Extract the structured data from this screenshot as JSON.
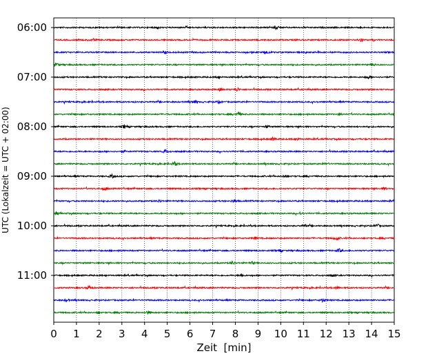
{
  "chart_data": {
    "type": "line",
    "title": "",
    "xlabel": "Zeit  [min]",
    "ylabel": "UTC (Lokalzeit = UTC + 02:00)",
    "xlim": [
      0,
      15
    ],
    "x_ticks": [
      0,
      1,
      2,
      3,
      4,
      5,
      6,
      7,
      8,
      9,
      10,
      11,
      12,
      13,
      14,
      15
    ],
    "y_tick_labels": [
      "06:00",
      "07:00",
      "08:00",
      "09:00",
      "10:00",
      "11:00"
    ],
    "grid": "vertical dotted",
    "trace_colors": [
      "#000000",
      "#ff0000",
      "#0000ff",
      "#008000"
    ],
    "series": [
      {
        "start": "06:00"
      },
      {
        "start": "06:15"
      },
      {
        "start": "06:30"
      },
      {
        "start": "06:45"
      },
      {
        "start": "07:00"
      },
      {
        "start": "07:15"
      },
      {
        "start": "07:30"
      },
      {
        "start": "07:45"
      },
      {
        "start": "08:00"
      },
      {
        "start": "08:15"
      },
      {
        "start": "08:30"
      },
      {
        "start": "08:45"
      },
      {
        "start": "09:00"
      },
      {
        "start": "09:15"
      },
      {
        "start": "09:30"
      },
      {
        "start": "09:45"
      },
      {
        "start": "10:00"
      },
      {
        "start": "10:15"
      },
      {
        "start": "10:30"
      },
      {
        "start": "10:45"
      },
      {
        "start": "11:00"
      },
      {
        "start": "11:15"
      },
      {
        "start": "11:30"
      },
      {
        "start": "11:45"
      }
    ]
  }
}
